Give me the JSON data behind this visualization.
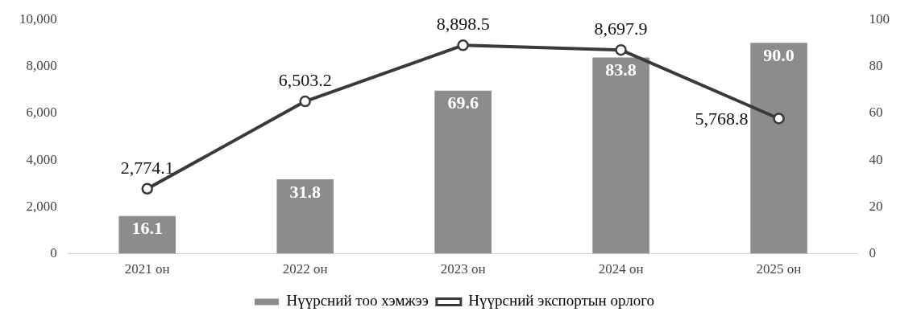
{
  "chart_data": {
    "type": "bar",
    "categories": [
      "2021 он",
      "2022 он",
      "2023 он",
      "2024 он",
      "2025 он"
    ],
    "series": [
      {
        "name": "Нүүрсний тоо хэмжээ",
        "axis": "y2",
        "color": "#8c8c8c",
        "values": [
          16.1,
          31.8,
          69.6,
          83.8,
          90.0
        ],
        "value_labels": [
          "16.1",
          "31.8",
          "69.6",
          "83.8",
          "90.0"
        ]
      },
      {
        "name": "Нүүрсний экспортын орлого",
        "type": "line",
        "color": "#3a3a3a",
        "marker": "circle",
        "values": [
          2774.1,
          6503.2,
          8898.5,
          8697.9,
          5768.8
        ],
        "value_labels": [
          "2,774.1",
          "6,503.2",
          "8,898.5",
          "8,697.9",
          "5,768.8"
        ]
      }
    ],
    "ylim": [
      0,
      10000
    ],
    "yticks": [
      {
        "value": 0,
        "label": "0"
      },
      {
        "value": 2000,
        "label": "2,000"
      },
      {
        "value": 4000,
        "label": "4,000"
      },
      {
        "value": 6000,
        "label": "6,000"
      },
      {
        "value": 8000,
        "label": "8,000"
      },
      {
        "value": 10000,
        "label": "10,000"
      }
    ],
    "y2lim": [
      0,
      100
    ],
    "y2ticks": [
      0,
      20,
      40,
      60,
      80,
      100
    ],
    "grid": false,
    "legend": "bottom"
  }
}
